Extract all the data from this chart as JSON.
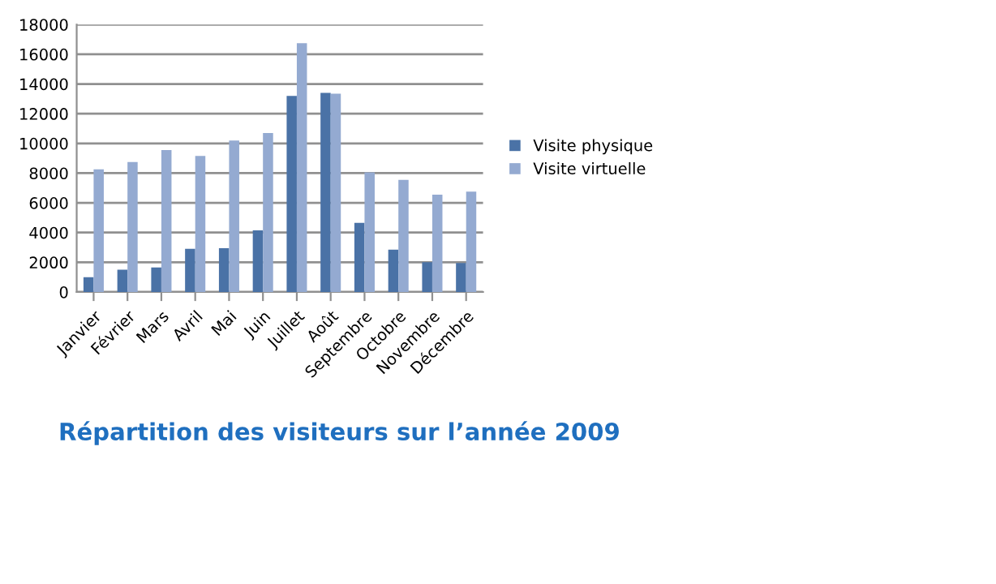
{
  "chart_data": {
    "type": "bar",
    "title": "Répartition des visiteurs sur l’année 2009",
    "categories": [
      "Janvier",
      "Février",
      "Mars",
      "Avril",
      "Mai",
      "Juin",
      "Juillet",
      "Août",
      "Septembre",
      "Octobre",
      "Novembre",
      "Décembre"
    ],
    "series": [
      {
        "name": "Visite physique",
        "color": "#4a72a6",
        "values": [
          1000,
          1500,
          1650,
          2900,
          2950,
          4150,
          13200,
          13400,
          4650,
          2850,
          2000,
          1950
        ]
      },
      {
        "name": "Visite virtuelle",
        "color": "#94aad1",
        "values": [
          8250,
          8750,
          9550,
          9150,
          10200,
          10700,
          16750,
          13350,
          8050,
          7550,
          6550,
          6750
        ]
      }
    ],
    "ylim": [
      0,
      18000
    ],
    "yticks": [
      0,
      2000,
      4000,
      6000,
      8000,
      10000,
      12000,
      14000,
      16000,
      18000
    ],
    "grid": "y",
    "legend": "right"
  }
}
